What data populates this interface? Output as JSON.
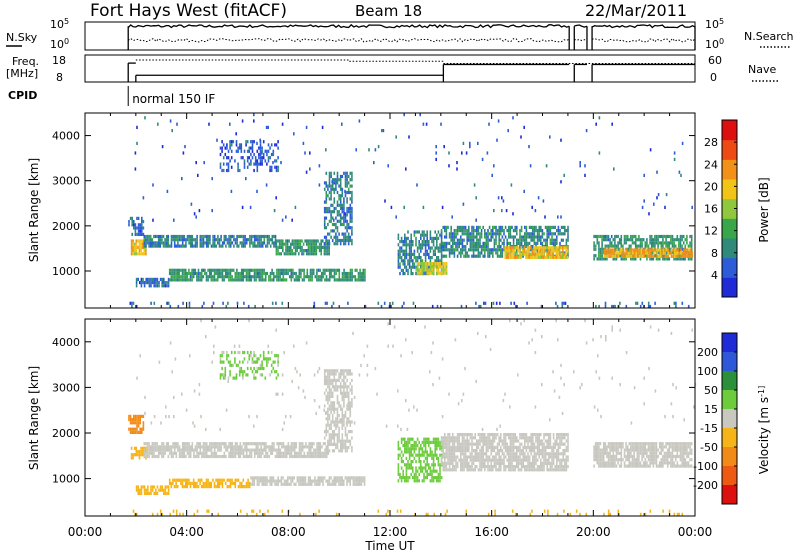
{
  "header": {
    "title": "Fort Hays West (fitACF)",
    "beam": "Beam 18",
    "date": "22/Mar/2011"
  },
  "chart_data": [
    {
      "type": "line",
      "name": "nsky-nsearch",
      "left_label": "N.Sky",
      "right_label": "N.Search",
      "left_ticks": [
        "10^5",
        "10^0"
      ],
      "right_ticks": [
        "10^5",
        "10^0"
      ],
      "series": [
        {
          "name": "N.Sky",
          "style": "solid",
          "level": 0.85
        },
        {
          "name": "N.Search",
          "style": "dotted",
          "level": 0.35
        }
      ],
      "data_gaps_hours": [
        [
          0.0,
          1.7
        ],
        [
          19.05,
          19.25
        ],
        [
          19.75,
          19.95
        ]
      ]
    },
    {
      "type": "line",
      "name": "freq-nave",
      "left_label": "Freq.",
      "left_unit": "[MHz]",
      "right_label": "Nave",
      "left_ticks": [
        18,
        8
      ],
      "right_ticks": [
        60,
        0
      ],
      "ylim_left": [
        8,
        18
      ],
      "ylim_right": [
        0,
        60
      ],
      "freq_steps": [
        {
          "x": [
            1.7,
            2.0
          ],
          "y": 15.0
        },
        {
          "x": [
            2.0,
            14.1
          ],
          "y": 10.5
        },
        {
          "x": [
            14.1,
            19.05
          ],
          "y": 14.5
        },
        {
          "x": [
            19.25,
            19.75
          ],
          "y": 14.5
        },
        {
          "x": [
            19.95,
            24.0
          ],
          "y": 14.5
        }
      ],
      "nave_steps": [
        {
          "x": [
            2.0,
            10.4
          ],
          "y": 49
        },
        {
          "x": [
            10.4,
            14.1
          ],
          "y": 46
        },
        {
          "x": [
            14.1,
            24.0
          ],
          "y": 41
        }
      ]
    },
    {
      "type": "table",
      "name": "cpid",
      "label": "CPID",
      "entries": [
        {
          "start_hour": 1.7,
          "text": "normal 150 IF"
        }
      ]
    },
    {
      "type": "heatmap",
      "name": "power",
      "ylabel": "Slant Range [km]",
      "ylim": [
        180,
        4500
      ],
      "yticks": [
        1000,
        2000,
        3000,
        4000
      ],
      "colorbar_label": "Power [dB]",
      "colorbar_ticks": [
        4,
        8,
        12,
        16,
        20,
        24,
        28
      ],
      "colorbar_range": [
        0,
        32
      ],
      "colors": [
        "#1e2bd6",
        "#2c5cd8",
        "#2f8a7a",
        "#3aa64a",
        "#8fc83c",
        "#f2c418",
        "#f29018",
        "#ee4a14",
        "#dd1010"
      ],
      "regions": [
        {
          "x": [
            1.7,
            2.3
          ],
          "y": [
            1800,
            2200
          ],
          "v": 6,
          "density": 0.6
        },
        {
          "x": [
            1.8,
            2.4
          ],
          "y": [
            1400,
            1700
          ],
          "v": 20,
          "density": 0.9
        },
        {
          "x": [
            2.3,
            7.5
          ],
          "y": [
            1550,
            1800
          ],
          "v": 8,
          "density": 0.75
        },
        {
          "x": [
            7.5,
            9.6
          ],
          "y": [
            1400,
            1700
          ],
          "v": 10,
          "density": 0.85
        },
        {
          "x": [
            9.4,
            10.5
          ],
          "y": [
            1600,
            3200
          ],
          "v": 8,
          "density": 0.6
        },
        {
          "x": [
            5.3,
            7.6
          ],
          "y": [
            3200,
            3900
          ],
          "v": 5,
          "density": 0.4
        },
        {
          "x": [
            2.0,
            3.3
          ],
          "y": [
            700,
            850
          ],
          "v": 6,
          "density": 0.7
        },
        {
          "x": [
            3.3,
            11.0
          ],
          "y": [
            800,
            1050
          ],
          "v": 10,
          "density": 0.8
        },
        {
          "x": [
            12.3,
            14.0
          ],
          "y": [
            950,
            1900
          ],
          "v": 8,
          "density": 0.6
        },
        {
          "x": [
            13.0,
            14.2
          ],
          "y": [
            950,
            1200
          ],
          "v": 18,
          "density": 0.85
        },
        {
          "x": [
            14.0,
            19.0
          ],
          "y": [
            1300,
            2000
          ],
          "v": 9,
          "density": 0.7
        },
        {
          "x": [
            16.5,
            19.0
          ],
          "y": [
            1300,
            1550
          ],
          "v": 20,
          "density": 0.85
        },
        {
          "x": [
            20.0,
            23.9
          ],
          "y": [
            1250,
            1800
          ],
          "v": 10,
          "density": 0.7
        },
        {
          "x": [
            20.4,
            23.9
          ],
          "y": [
            1300,
            1500
          ],
          "v": 22,
          "density": 0.9
        },
        {
          "x": [
            1.5,
            24.0
          ],
          "y": [
            180,
            320
          ],
          "v": 6,
          "density": 0.12
        },
        {
          "x": [
            1.7,
            24.0
          ],
          "y": [
            2100,
            4500
          ],
          "v": 5,
          "density": 0.015
        }
      ]
    },
    {
      "type": "heatmap",
      "name": "velocity",
      "ylabel": "Slant Range [km]",
      "ylim": [
        180,
        4500
      ],
      "yticks": [
        1000,
        2000,
        3000,
        4000
      ],
      "xlabel": "Time UT",
      "xticks": [
        "00:00",
        "04:00",
        "08:00",
        "12:00",
        "16:00",
        "20:00",
        "00:00"
      ],
      "xlim": [
        0,
        24
      ],
      "colorbar_label": "Velocity [m s^-1]",
      "colorbar_ticks": [
        200,
        100,
        50,
        15,
        -15,
        -50,
        -100,
        -200
      ],
      "colors": [
        "#1e2bd6",
        "#2e58d8",
        "#2c8f3a",
        "#6ccc3c",
        "#c8c8c0",
        "#f6b418",
        "#f28a18",
        "#ee5a14",
        "#dd1010"
      ],
      "regions": [
        {
          "x": [
            1.7,
            2.3
          ],
          "y": [
            2000,
            2400
          ],
          "v": -60,
          "density": 0.7
        },
        {
          "x": [
            1.8,
            2.4
          ],
          "y": [
            1450,
            1700
          ],
          "v": -30,
          "density": 0.7
        },
        {
          "x": [
            2.3,
            9.6
          ],
          "y": [
            1500,
            1800
          ],
          "v": 0,
          "density": 0.8
        },
        {
          "x": [
            9.4,
            10.5
          ],
          "y": [
            1600,
            3400
          ],
          "v": 0,
          "density": 0.6
        },
        {
          "x": [
            5.3,
            7.6
          ],
          "y": [
            3200,
            3800
          ],
          "v": 20,
          "density": 0.35
        },
        {
          "x": [
            2.0,
            3.3
          ],
          "y": [
            700,
            850
          ],
          "v": -40,
          "density": 0.7
        },
        {
          "x": [
            3.3,
            6.5
          ],
          "y": [
            800,
            1000
          ],
          "v": -35,
          "density": 0.75
        },
        {
          "x": [
            6.5,
            11.0
          ],
          "y": [
            850,
            1050
          ],
          "v": 0,
          "density": 0.8
        },
        {
          "x": [
            12.3,
            14.0
          ],
          "y": [
            950,
            1900
          ],
          "v": 40,
          "density": 0.6
        },
        {
          "x": [
            14.0,
            19.0
          ],
          "y": [
            1200,
            2000
          ],
          "v": 0,
          "density": 0.8
        },
        {
          "x": [
            20.0,
            23.9
          ],
          "y": [
            1250,
            1800
          ],
          "v": 0,
          "density": 0.8
        },
        {
          "x": [
            1.5,
            24.0
          ],
          "y": [
            180,
            320
          ],
          "v": -40,
          "density": 0.12
        },
        {
          "x": [
            1.7,
            24.0
          ],
          "y": [
            2100,
            4500
          ],
          "v": 0,
          "density": 0.015
        }
      ]
    }
  ]
}
